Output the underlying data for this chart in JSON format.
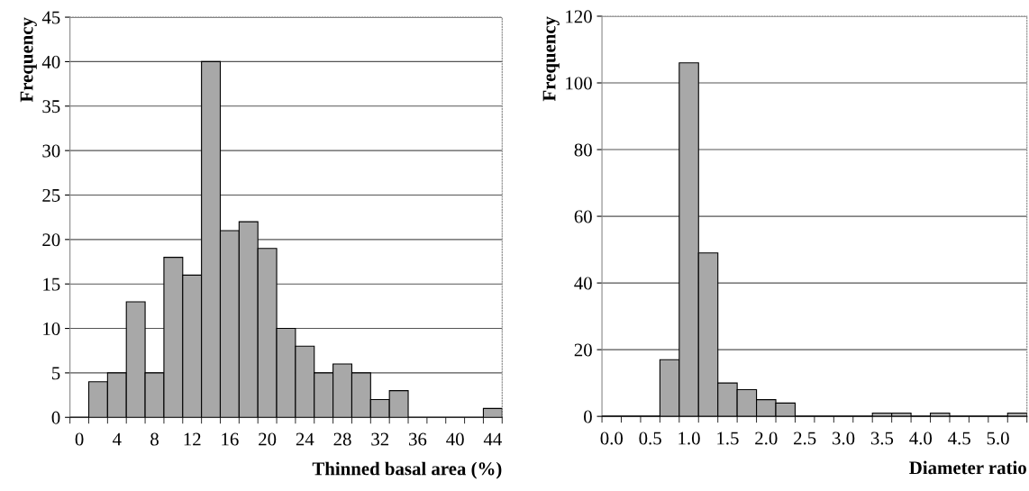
{
  "chart_data": [
    {
      "type": "bar",
      "xlabel": "Thinned basal area (%)",
      "ylabel": "Frequency",
      "color": "#a8a8a8",
      "categories": [
        "0",
        null,
        "4",
        null,
        "8",
        null,
        "12",
        null,
        "16",
        null,
        "20",
        null,
        "24",
        null,
        "28",
        null,
        "32",
        null,
        "36",
        null,
        "40",
        null,
        "44"
      ],
      "values": [
        0,
        4,
        5,
        13,
        5,
        18,
        16,
        40,
        21,
        22,
        19,
        10,
        8,
        5,
        6,
        5,
        2,
        3,
        0,
        0,
        0,
        0,
        1
      ],
      "ylim": [
        0,
        45
      ],
      "yticks": [
        0,
        5,
        10,
        15,
        20,
        25,
        30,
        35,
        40,
        45
      ],
      "grid": "y"
    },
    {
      "type": "bar",
      "xlabel": "Diameter ratio",
      "ylabel": "Frequency",
      "color": "#a8a8a8",
      "categories": [
        "0.0",
        null,
        "0.5",
        null,
        "1.0",
        null,
        "1.5",
        null,
        "2.0",
        null,
        "2.5",
        null,
        "3.0",
        null,
        "3.5",
        null,
        "4.0",
        null,
        "4.5",
        null,
        "5.0",
        null
      ],
      "values": [
        0,
        0,
        0,
        17,
        106,
        49,
        10,
        8,
        5,
        4,
        0,
        0,
        0,
        0,
        1,
        1,
        0,
        1,
        0,
        0,
        0,
        1
      ],
      "ylim": [
        0,
        120
      ],
      "yticks": [
        0,
        20,
        40,
        60,
        80,
        100,
        120
      ],
      "grid": "y"
    }
  ]
}
